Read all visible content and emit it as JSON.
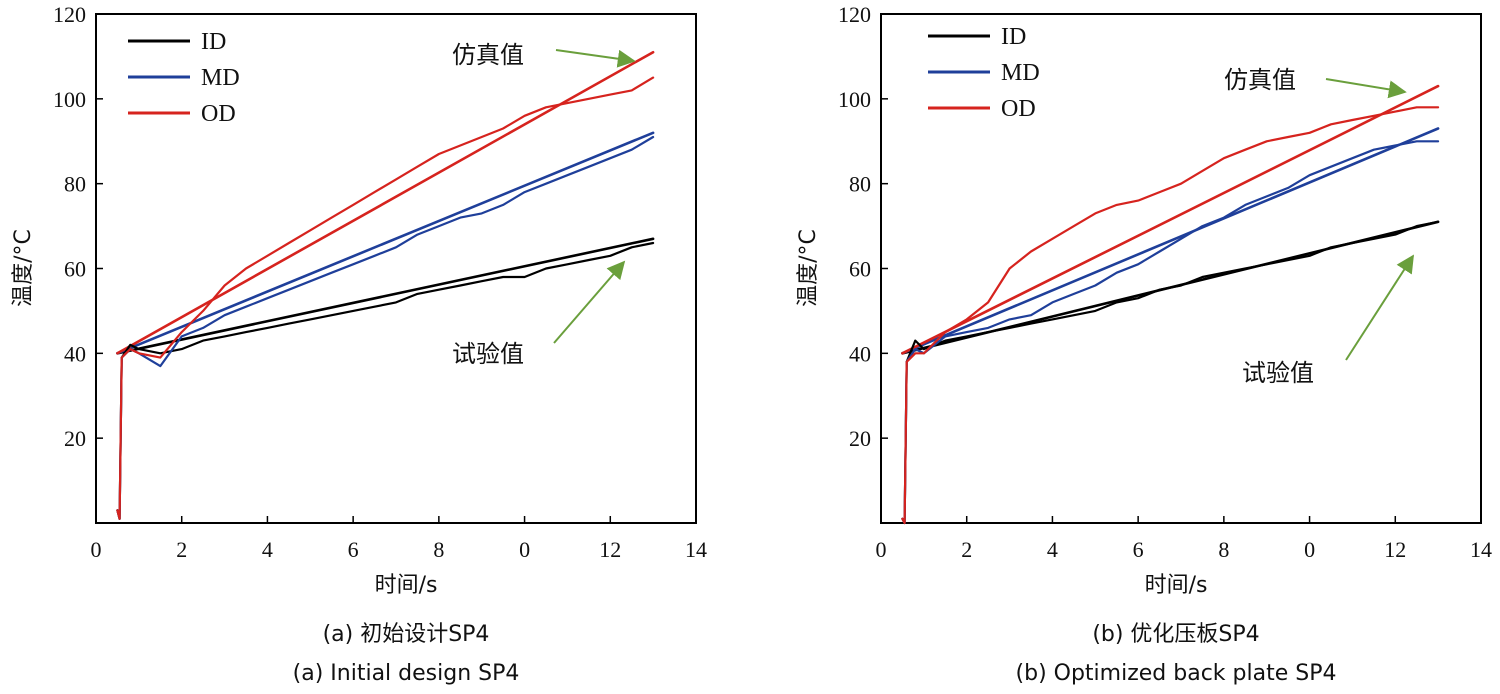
{
  "figure": {
    "caption_a_line1": "(a) 初始设计SP4",
    "caption_a_line2": "(a) Initial design SP4",
    "caption_b_line1": "(b) 优化压板SP4",
    "caption_b_line2": "(b) Optimized back plate SP4"
  },
  "colors": {
    "ID": "#000000",
    "MD": "#1f3f9a",
    "OD": "#d6231e",
    "arrow": "#6a9f3c"
  },
  "chart_data": [
    {
      "type": "line",
      "xlabel": "时间/s",
      "ylabel": "温度/°C",
      "xlim": [
        0,
        14
      ],
      "ylim": [
        0,
        120
      ],
      "x_ticks": [
        "0",
        "2",
        "4",
        "6",
        "8",
        "0",
        "12",
        "14"
      ],
      "y_ticks": [
        "20",
        "40",
        "60",
        "80",
        "100",
        "120"
      ],
      "legend": [
        "ID",
        "MD",
        "OD"
      ],
      "legend_position": "top-left",
      "annotation_sim": "仿真值",
      "annotation_exp": "试验值",
      "series": [
        {
          "name": "ID",
          "kind": "simulated",
          "x": [
            0.5,
            13.0
          ],
          "y": [
            40,
            67
          ]
        },
        {
          "name": "MD",
          "kind": "simulated",
          "x": [
            0.5,
            13.0
          ],
          "y": [
            40,
            92
          ]
        },
        {
          "name": "OD",
          "kind": "simulated",
          "x": [
            0.5,
            13.0
          ],
          "y": [
            40,
            111
          ]
        },
        {
          "name": "ID",
          "kind": "experimental",
          "x": [
            0.5,
            0.55,
            0.6,
            0.8,
            1.0,
            1.5,
            2.0,
            2.5,
            3.0,
            3.5,
            4.0,
            4.5,
            5.0,
            5.5,
            6.0,
            6.5,
            7.0,
            7.5,
            8.0,
            8.5,
            9.0,
            9.5,
            10.0,
            10.5,
            11.0,
            11.5,
            12.0,
            12.5,
            13.0
          ],
          "y": [
            3,
            1,
            39,
            42,
            41,
            40,
            41,
            43,
            44,
            45,
            46,
            47,
            48,
            49,
            50,
            51,
            52,
            54,
            55,
            56,
            57,
            58,
            58,
            60,
            61,
            62,
            63,
            65,
            66
          ]
        },
        {
          "name": "MD",
          "kind": "experimental",
          "x": [
            0.5,
            0.55,
            0.6,
            0.8,
            1.0,
            1.5,
            2.0,
            2.5,
            3.0,
            3.5,
            4.0,
            4.5,
            5.0,
            5.5,
            6.0,
            6.5,
            7.0,
            7.5,
            8.0,
            8.5,
            9.0,
            9.5,
            10.0,
            10.5,
            11.0,
            11.5,
            12.0,
            12.5,
            13.0
          ],
          "y": [
            3,
            1,
            39,
            41,
            40,
            37,
            44,
            46,
            49,
            51,
            53,
            55,
            57,
            59,
            61,
            63,
            65,
            68,
            70,
            72,
            73,
            75,
            78,
            80,
            82,
            84,
            86,
            88,
            91
          ]
        },
        {
          "name": "OD",
          "kind": "experimental",
          "x": [
            0.5,
            0.55,
            0.6,
            0.8,
            1.0,
            1.5,
            2.0,
            2.5,
            3.0,
            3.5,
            4.0,
            4.5,
            5.0,
            5.5,
            6.0,
            6.5,
            7.0,
            7.5,
            8.0,
            8.5,
            9.0,
            9.5,
            10.0,
            10.5,
            11.0,
            11.5,
            12.0,
            12.5,
            13.0
          ],
          "y": [
            3,
            1,
            39,
            41,
            40,
            39,
            45,
            50,
            56,
            60,
            63,
            66,
            69,
            72,
            75,
            78,
            81,
            84,
            87,
            89,
            91,
            93,
            96,
            98,
            99,
            100,
            101,
            102,
            105
          ]
        }
      ]
    },
    {
      "type": "line",
      "xlabel": "时间/s",
      "ylabel": "温度/°C",
      "xlim": [
        0,
        14
      ],
      "ylim": [
        0,
        120
      ],
      "x_ticks": [
        "0",
        "2",
        "4",
        "6",
        "8",
        "0",
        "12",
        "14"
      ],
      "y_ticks": [
        "20",
        "40",
        "60",
        "80",
        "100",
        "120"
      ],
      "legend": [
        "ID",
        "MD",
        "OD"
      ],
      "legend_position": "top-left",
      "annotation_sim": "仿真值",
      "annotation_exp": "试验值",
      "series": [
        {
          "name": "ID",
          "kind": "simulated",
          "x": [
            0.5,
            13.0
          ],
          "y": [
            40,
            71
          ]
        },
        {
          "name": "MD",
          "kind": "simulated",
          "x": [
            0.5,
            13.0
          ],
          "y": [
            40,
            93
          ]
        },
        {
          "name": "OD",
          "kind": "simulated",
          "x": [
            0.5,
            13.0
          ],
          "y": [
            40,
            103
          ]
        },
        {
          "name": "ID",
          "kind": "experimental",
          "x": [
            0.5,
            0.55,
            0.6,
            0.8,
            1.0,
            1.5,
            2.0,
            2.5,
            3.0,
            3.5,
            4.0,
            4.5,
            5.0,
            5.5,
            6.0,
            6.5,
            7.0,
            7.5,
            8.0,
            8.5,
            9.0,
            9.5,
            10.0,
            10.5,
            11.0,
            11.5,
            12.0,
            12.5,
            13.0
          ],
          "y": [
            1,
            0,
            38,
            43,
            41,
            43,
            44,
            45,
            46,
            47,
            48,
            49,
            50,
            52,
            53,
            55,
            56,
            58,
            59,
            60,
            61,
            62,
            63,
            65,
            66,
            67,
            68,
            70,
            71
          ]
        },
        {
          "name": "MD",
          "kind": "experimental",
          "x": [
            0.5,
            0.55,
            0.6,
            0.8,
            1.0,
            1.5,
            2.0,
            2.5,
            3.0,
            3.5,
            4.0,
            4.5,
            5.0,
            5.5,
            6.0,
            6.5,
            7.0,
            7.5,
            8.0,
            8.5,
            9.0,
            9.5,
            10.0,
            10.5,
            11.0,
            11.5,
            12.0,
            12.5,
            13.0
          ],
          "y": [
            1,
            0,
            38,
            41,
            40,
            44,
            45,
            46,
            48,
            49,
            52,
            54,
            56,
            59,
            61,
            64,
            67,
            70,
            72,
            75,
            77,
            79,
            82,
            84,
            86,
            88,
            89,
            90,
            90
          ]
        },
        {
          "name": "OD",
          "kind": "experimental",
          "x": [
            0.5,
            0.55,
            0.6,
            0.8,
            1.0,
            1.5,
            2.0,
            2.5,
            3.0,
            3.5,
            4.0,
            4.5,
            5.0,
            5.5,
            6.0,
            6.5,
            7.0,
            7.5,
            8.0,
            8.5,
            9.0,
            9.5,
            10.0,
            10.5,
            11.0,
            11.5,
            12.0,
            12.5,
            13.0
          ],
          "y": [
            1,
            0,
            38,
            40,
            40,
            45,
            48,
            52,
            60,
            64,
            67,
            70,
            73,
            75,
            76,
            78,
            80,
            83,
            86,
            88,
            90,
            91,
            92,
            94,
            95,
            96,
            97,
            98,
            98
          ]
        }
      ]
    }
  ]
}
